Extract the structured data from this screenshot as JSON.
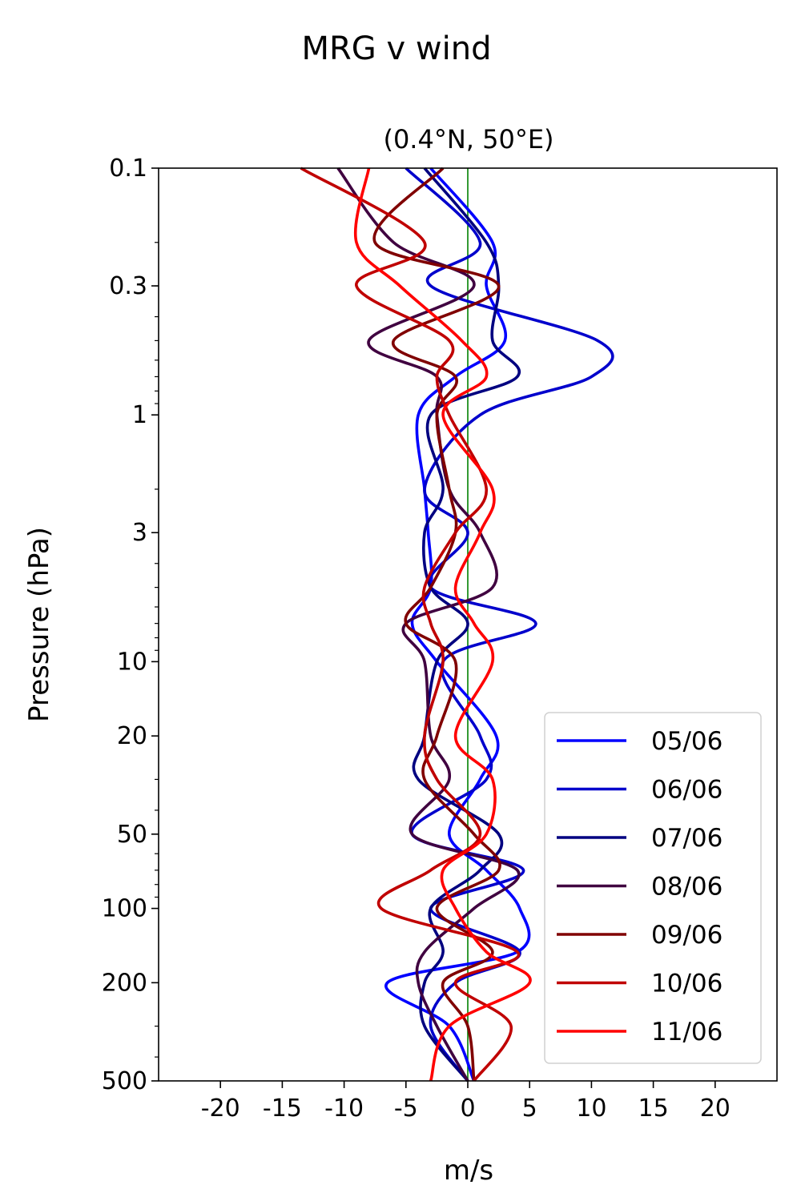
{
  "chart_data": {
    "type": "line",
    "title": "MRG v wind",
    "subtitle": "(0.4°N, 50°E)",
    "xlabel": "m/s",
    "ylabel": "Pressure (hPa)",
    "xlim": [
      -25,
      25
    ],
    "ylim": [
      500,
      0.1
    ],
    "y_scale": "log",
    "y_inverted": true,
    "grid": false,
    "legend_position": "lower right",
    "xticks": [
      -20,
      -15,
      -10,
      -5,
      0,
      5,
      10,
      15,
      20
    ],
    "xtick_labels": [
      "-20",
      "-15",
      "-10",
      "-5",
      "0",
      "5",
      "10",
      "15",
      "20"
    ],
    "yticks": [
      0.1,
      0.3,
      1,
      3,
      10,
      20,
      50,
      100,
      200,
      500
    ],
    "ytick_labels": [
      "0.1",
      "0.3",
      "1",
      "3",
      "10",
      "20",
      "50",
      "100",
      "200",
      "500"
    ],
    "reference_line": {
      "x": 0,
      "color": "#008000"
    },
    "pressure_levels": [
      500,
      300,
      200,
      150,
      100,
      70,
      50,
      30,
      20,
      10,
      7,
      5,
      3,
      2,
      1,
      0.7,
      0.5,
      0.3,
      0.2,
      0.1
    ],
    "series": [
      {
        "name": "05/06",
        "color": "#0000ff",
        "values": [
          0.5,
          -1.5,
          -6.5,
          4.0,
          4.2,
          1.5,
          -1.5,
          1.0,
          2.3,
          -2.5,
          -4.5,
          -3.0,
          -3.2,
          -3.5,
          -4.0,
          -1.0,
          3.0,
          1.5,
          2.0,
          -3.0
        ]
      },
      {
        "name": "06/06",
        "color": "#0000cc",
        "values": [
          0.0,
          -3.0,
          -1.0,
          4.2,
          -3.0,
          4.5,
          -4.5,
          1.5,
          1.0,
          -2.0,
          5.5,
          -3.0,
          0.0,
          -3.5,
          1.0,
          10.0,
          10.5,
          -3.0,
          1.0,
          -5.0
        ]
      },
      {
        "name": "07/06",
        "color": "#000080",
        "values": [
          0.0,
          -3.5,
          -3.5,
          -2.0,
          -3.0,
          1.0,
          2.5,
          -4.0,
          -3.5,
          -2.5,
          0.0,
          -3.0,
          -3.5,
          -2.0,
          -3.0,
          4.0,
          2.0,
          2.5,
          1.5,
          -3.5
        ]
      },
      {
        "name": "08/06",
        "color": "#400040",
        "values": [
          0.0,
          -2.5,
          -4.0,
          -3.5,
          0.5,
          4.0,
          -4.5,
          -1.5,
          -3.0,
          -3.5,
          -5.0,
          2.0,
          1.0,
          -1.5,
          -2.5,
          -2.5,
          -8.0,
          0.5,
          -6.0,
          -10.5
        ]
      },
      {
        "name": "09/06",
        "color": "#800000",
        "values": [
          0.5,
          0.0,
          -2.0,
          2.0,
          -2.5,
          2.5,
          0.5,
          -3.5,
          -2.5,
          -1.0,
          -5.0,
          -3.0,
          -1.0,
          -1.5,
          -2.5,
          -1.0,
          -6.0,
          2.5,
          -7.5,
          -2.0
        ]
      },
      {
        "name": "10/06",
        "color": "#c00000",
        "values": [
          0.5,
          3.5,
          -1.0,
          4.0,
          -7.0,
          -3.0,
          1.0,
          -2.5,
          -3.5,
          -2.0,
          -3.0,
          -3.5,
          -1.0,
          1.5,
          -1.5,
          -2.5,
          -1.5,
          -9.0,
          -3.5,
          -13.5
        ]
      },
      {
        "name": "11/06",
        "color": "#ff0000",
        "values": [
          -3.0,
          -1.5,
          5.0,
          1.5,
          -1.0,
          -2.0,
          1.5,
          2.0,
          -1.0,
          2.0,
          0.5,
          -1.0,
          1.0,
          2.0,
          -2.0,
          1.5,
          -0.5,
          -5.5,
          -9.0,
          -8.0
        ]
      }
    ]
  }
}
